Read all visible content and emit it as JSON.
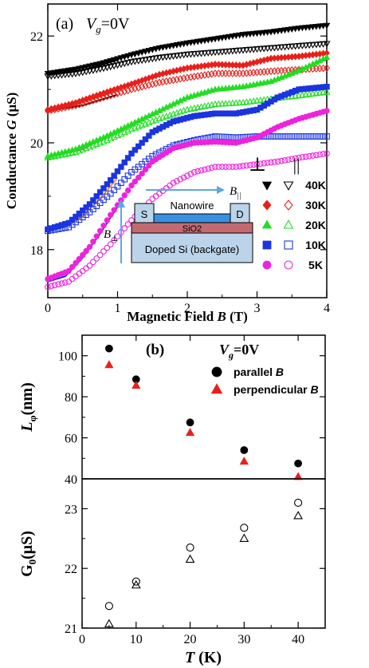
{
  "chart_data": [
    {
      "type": "scatter",
      "panel_label": "(a)",
      "annotation": {
        "v_sym": "V",
        "v_sub": "g",
        "v_val": "=0V"
      },
      "xlabel": "Magnetic Field B (T)",
      "ylabel": "Conductance G (μS)",
      "xlim": [
        0,
        4
      ],
      "ylim": [
        17.1,
        22.6
      ],
      "x_ticks": [
        0,
        1,
        2,
        3,
        4
      ],
      "y_ticks": [
        18,
        20,
        22
      ],
      "legend": {
        "col_headers": [
          "⊥",
          "||"
        ],
        "rows": [
          {
            "label": "40K",
            "perp_marker": "down-triangle-filled",
            "par_marker": "down-triangle-open",
            "color": "#000000"
          },
          {
            "label": "30K",
            "perp_marker": "diamond-filled",
            "par_marker": "diamond-open",
            "color": "#e8201a"
          },
          {
            "label": "20K",
            "perp_marker": "up-triangle-filled",
            "par_marker": "up-triangle-open",
            "color": "#22dd22"
          },
          {
            "label": "10K",
            "perp_marker": "square-filled",
            "par_marker": "square-open",
            "color": "#1a35e0"
          },
          {
            "label": "5K",
            "perp_marker": "circle-filled",
            "par_marker": "circle-open",
            "color": "#ee22dd"
          }
        ]
      },
      "series": [
        {
          "name": "40K ⊥",
          "marker": "down-triangle-filled",
          "color": "#000000",
          "x": [
            0,
            0.4,
            0.8,
            1.2,
            1.6,
            2.0,
            2.4,
            2.8,
            3.2,
            3.6,
            4.0
          ],
          "y": [
            21.3,
            21.38,
            21.5,
            21.65,
            21.78,
            21.87,
            21.95,
            22.03,
            22.08,
            22.15,
            22.2
          ]
        },
        {
          "name": "40K ||",
          "marker": "down-triangle-open",
          "color": "#000000",
          "x": [
            0,
            0.4,
            0.8,
            1.2,
            1.6,
            2.0,
            2.4,
            2.8,
            3.2,
            3.6,
            4.0
          ],
          "y": [
            21.25,
            21.3,
            21.4,
            21.52,
            21.6,
            21.66,
            21.7,
            21.74,
            21.78,
            21.82,
            21.86
          ]
        },
        {
          "name": "30K ⊥",
          "marker": "diamond-filled",
          "color": "#e8201a",
          "x": [
            0,
            0.4,
            0.8,
            1.2,
            1.6,
            2.0,
            2.4,
            2.8,
            3.2,
            3.6,
            4.0
          ],
          "y": [
            20.62,
            20.75,
            20.93,
            21.1,
            21.28,
            21.4,
            21.47,
            21.45,
            21.58,
            21.62,
            21.68
          ]
        },
        {
          "name": "30K ||",
          "marker": "diamond-open",
          "color": "#e8201a",
          "x": [
            0,
            0.4,
            0.8,
            1.2,
            1.6,
            2.0,
            2.4,
            2.8,
            3.2,
            3.6,
            4.0
          ],
          "y": [
            20.6,
            20.7,
            20.85,
            21.0,
            21.13,
            21.22,
            21.3,
            21.3,
            21.34,
            21.37,
            21.4
          ]
        },
        {
          "name": "20K ⊥",
          "marker": "up-triangle-filled",
          "color": "#22dd22",
          "x": [
            0,
            0.4,
            0.8,
            1.2,
            1.6,
            2.0,
            2.4,
            2.8,
            3.2,
            3.6,
            4.0
          ],
          "y": [
            19.75,
            19.88,
            20.1,
            20.35,
            20.6,
            20.85,
            21.0,
            21.05,
            21.15,
            21.35,
            21.6
          ]
        },
        {
          "name": "20K ||",
          "marker": "up-triangle-open",
          "color": "#22dd22",
          "x": [
            0,
            0.4,
            0.8,
            1.2,
            1.6,
            2.0,
            2.4,
            2.8,
            3.2,
            3.6,
            4.0
          ],
          "y": [
            19.72,
            19.82,
            20.02,
            20.25,
            20.45,
            20.62,
            20.72,
            20.75,
            20.82,
            20.88,
            20.95
          ]
        },
        {
          "name": "10K ⊥",
          "marker": "square-filled",
          "color": "#1a35e0",
          "x": [
            0,
            0.3,
            0.6,
            0.9,
            1.2,
            1.5,
            1.8,
            2.1,
            2.4,
            2.7,
            3.0,
            3.3,
            3.6,
            4.0
          ],
          "y": [
            18.38,
            18.5,
            18.85,
            19.3,
            19.8,
            20.2,
            20.4,
            20.5,
            20.55,
            20.55,
            20.62,
            20.85,
            21.0,
            21.05
          ]
        },
        {
          "name": "10K ||",
          "marker": "square-open",
          "color": "#1a35e0",
          "x": [
            0,
            0.3,
            0.6,
            0.9,
            1.2,
            1.5,
            1.8,
            2.1,
            2.4,
            2.7,
            3.0,
            3.3,
            3.6,
            4.0
          ],
          "y": [
            18.35,
            18.42,
            18.7,
            19.05,
            19.45,
            19.75,
            19.95,
            20.05,
            20.12,
            20.1,
            20.12,
            20.12,
            20.12,
            20.12
          ]
        },
        {
          "name": "5K ⊥",
          "marker": "circle-filled",
          "color": "#ee22dd",
          "x": [
            0,
            0.3,
            0.6,
            0.9,
            1.2,
            1.5,
            1.8,
            2.1,
            2.4,
            2.7,
            3.0,
            3.3,
            3.6,
            4.0
          ],
          "y": [
            17.45,
            17.6,
            18.05,
            18.65,
            19.2,
            19.65,
            19.9,
            20.0,
            20.02,
            20.0,
            20.1,
            20.3,
            20.45,
            20.6
          ]
        },
        {
          "name": "5K ||",
          "marker": "circle-open",
          "color": "#ee22dd",
          "x": [
            0,
            0.3,
            0.6,
            0.9,
            1.2,
            1.5,
            1.8,
            2.1,
            2.4,
            2.7,
            3.0,
            3.3,
            3.6,
            4.0
          ],
          "y": [
            17.3,
            17.4,
            17.7,
            18.1,
            18.55,
            18.95,
            19.25,
            19.45,
            19.55,
            19.55,
            19.6,
            19.65,
            19.72,
            19.8
          ]
        }
      ],
      "fits": [
        {
          "color": "#000000",
          "x": [
            0,
            0.5,
            1.0
          ],
          "y": [
            21.28,
            21.36,
            21.55
          ]
        },
        {
          "color": "#000000",
          "x": [
            0,
            0.5,
            1.0
          ],
          "y": [
            20.6,
            20.7,
            20.9
          ]
        },
        {
          "color": "#ee22dd",
          "x": [
            0,
            0.5,
            1.0
          ],
          "y": [
            19.72,
            19.88,
            20.22
          ]
        },
        {
          "color": "#ff8c1a",
          "x": [
            0,
            0.25,
            0.5,
            0.75,
            1.0
          ],
          "y": [
            18.36,
            18.42,
            18.62,
            18.95,
            19.35
          ]
        },
        {
          "color": "#1a35e0",
          "x": [
            0,
            0.25,
            0.5,
            0.75,
            1.0
          ],
          "y": [
            17.4,
            17.5,
            17.85,
            18.3,
            18.8
          ]
        }
      ],
      "inset": {
        "labels": {
          "source": "S",
          "drain": "D",
          "wire": "Nanowire",
          "oxide": "SiO2",
          "gate": "Doped Si (backgate)"
        },
        "field_parallel": {
          "sym": "B",
          "sub": "||"
        },
        "field_perp": {
          "sym": "B",
          "sub": "⊥"
        }
      }
    },
    {
      "type": "scatter",
      "panel_label": "(b)",
      "annotation": {
        "v_sym": "V",
        "v_sub": "g",
        "v_val": "=0V"
      },
      "ylabel": "Lφ(nm)",
      "xlim": [
        0,
        45
      ],
      "ylim": [
        40,
        110
      ],
      "y_ticks": [
        40,
        60,
        80,
        100
      ],
      "legend": [
        {
          "label": "parallel B",
          "marker": "circle-filled",
          "color": "#000000"
        },
        {
          "label": "perpendicular B",
          "marker": "up-triangle-filled",
          "color": "#e8201a"
        }
      ],
      "series": [
        {
          "name": "parallel B",
          "marker": "circle-filled",
          "color": "#000000",
          "x": [
            5,
            10,
            20,
            30,
            40
          ],
          "y": [
            103.5,
            88.5,
            67.5,
            54,
            47.5
          ]
        },
        {
          "name": "perpendicular B",
          "marker": "up-triangle-filled",
          "color": "#e8201a",
          "x": [
            5,
            10,
            20,
            30,
            40
          ],
          "y": [
            95.5,
            85.5,
            62.5,
            48.5,
            41
          ]
        }
      ]
    },
    {
      "type": "scatter",
      "xlabel": "T (K)",
      "ylabel": "G0(μS)",
      "xlim": [
        0,
        45
      ],
      "ylim": [
        21,
        23.5
      ],
      "x_ticks": [
        0,
        10,
        20,
        30,
        40
      ],
      "y_ticks": [
        21,
        22,
        23
      ],
      "series": [
        {
          "name": "parallel",
          "marker": "circle-open",
          "color": "#000000",
          "x": [
            5,
            10,
            20,
            30,
            40
          ],
          "y": [
            21.37,
            21.78,
            22.35,
            22.68,
            23.1
          ]
        },
        {
          "name": "perpendicular",
          "marker": "up-triangle-open",
          "color": "#000000",
          "x": [
            5,
            10,
            20,
            30,
            40
          ],
          "y": [
            21.07,
            21.72,
            22.15,
            22.5,
            22.88
          ]
        }
      ]
    }
  ]
}
